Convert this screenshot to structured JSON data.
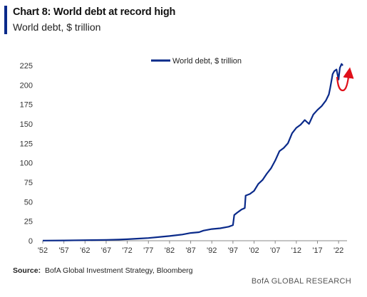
{
  "title": "Chart 8: World debt at record high",
  "subtitle": "World debt, $ trillion",
  "source_label": "Source:",
  "source_text": "BofA Global Investment Strategy, Bloomberg",
  "footer": "BofA GLOBAL RESEARCH",
  "colors": {
    "accent": "#0a2a8a",
    "series": "#0a2a8a",
    "arrow": "#e0101a",
    "axis": "#888888"
  },
  "chart_data": {
    "type": "line",
    "legend": [
      "World debt, $ trillion"
    ],
    "legend_position": "top-center",
    "grid": false,
    "xlim": [
      1952,
      2024
    ],
    "ylim": [
      0,
      225
    ],
    "yticks": [
      "0",
      "25",
      "50",
      "75",
      "100",
      "125",
      "150",
      "175",
      "200",
      "225"
    ],
    "xticks": [
      "'52",
      "'57",
      "'62",
      "'67",
      "'72",
      "'77",
      "'82",
      "'87",
      "'92",
      "'97",
      "'02",
      "'07",
      "'12",
      "'17",
      "'22"
    ],
    "series": [
      {
        "name": "World debt, $ trillion",
        "x": [
          1952,
          1957,
          1962,
          1967,
          1970,
          1972,
          1975,
          1977,
          1980,
          1982,
          1985,
          1987,
          1989,
          1990,
          1991,
          1992,
          1994,
          1996,
          1997,
          1997.3,
          1998,
          1999,
          1999.8,
          2000,
          2001,
          2002,
          2003,
          2004,
          2005,
          2006,
          2007,
          2008,
          2009,
          2010,
          2011,
          2012,
          2013,
          2014,
          2015,
          2016,
          2017,
          2018,
          2019,
          2019.7,
          2020,
          2020.6,
          2021,
          2021.5,
          2022,
          2022.3,
          2022.7,
          2023
        ],
        "y": [
          0.2,
          0.4,
          0.7,
          1.1,
          1.5,
          1.9,
          2.8,
          3.5,
          5,
          6,
          8,
          10,
          11,
          13,
          14,
          15,
          16,
          18,
          20,
          33,
          36,
          40,
          42,
          58,
          60,
          64,
          73,
          78,
          86,
          93,
          103,
          115,
          119,
          125,
          138,
          145,
          149,
          155,
          150,
          162,
          168,
          173,
          180,
          188,
          196,
          214,
          218,
          220,
          207,
          222,
          227,
          225
        ]
      }
    ],
    "annotation": {
      "type": "arrow",
      "color": "#e0101a"
    }
  }
}
